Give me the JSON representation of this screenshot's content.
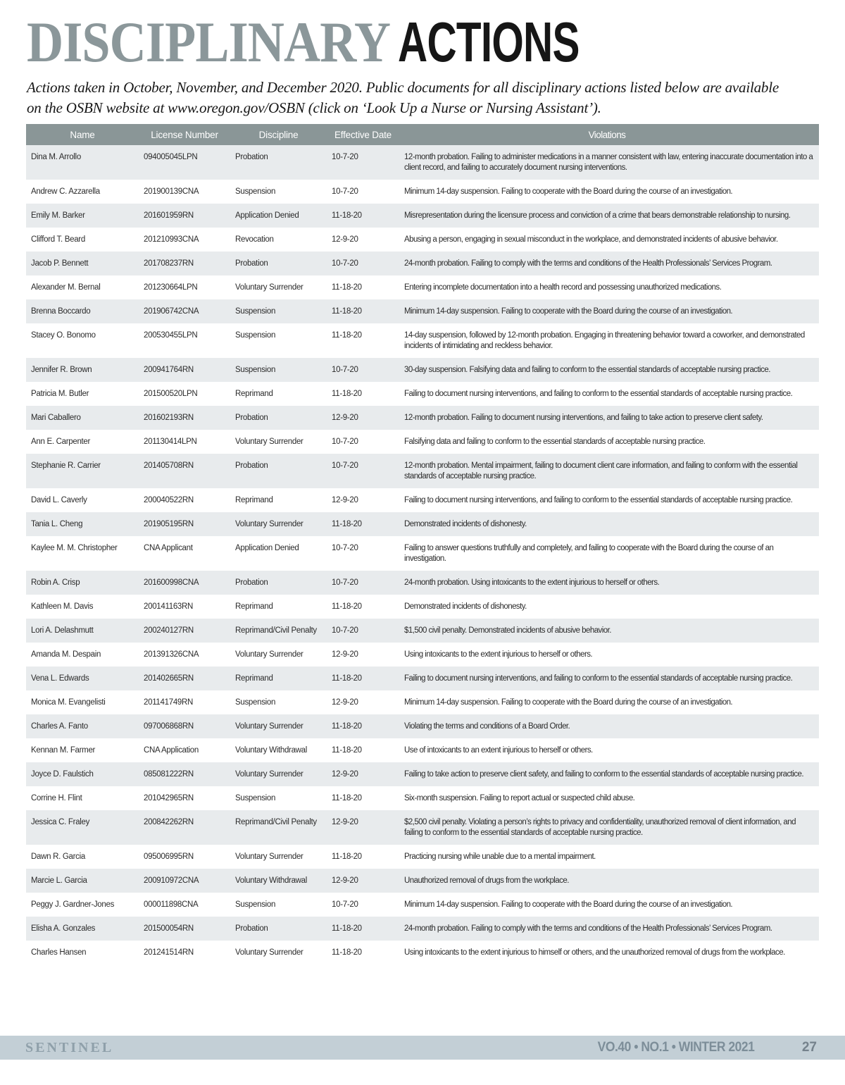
{
  "page": {
    "title_word1": "DISCIPLINARY",
    "title_word2": "ACTIONS",
    "intro_line1": "Actions taken in October, November, and December 2020.  Public documents for all disciplinary actions listed below are available",
    "intro_line2": "on the OSBN website at www.oregon.gov/OSBN (click on ‘Look Up a Nurse or Nursing Assistant’)."
  },
  "table": {
    "headers": [
      "Name",
      "License Number",
      "Discipline",
      "Effective Date",
      "Violations"
    ],
    "rows": [
      {
        "name": "Dina M. Arrollo",
        "license": "094005045LPN",
        "discipline": "Probation",
        "date": "10-7-20",
        "violations": "12-month probation.  Failing to administer medications in a manner consistent with law, entering inaccurate documentation into a client record, and failing to accurately document nursing interventions."
      },
      {
        "name": "Andrew C. Azzarella",
        "license": "201900139CNA",
        "discipline": "Suspension",
        "date": "10-7-20",
        "violations": "Minimum 14-day suspension.  Failing to cooperate with the Board during the course of an investigation."
      },
      {
        "name": "Emily M. Barker",
        "license": "201601959RN",
        "discipline": "Application Denied",
        "date": "11-18-20",
        "violations": "Misrepresentation during the licensure process and conviction of a crime that bears demonstrable relationship to nursing."
      },
      {
        "name": "Clifford T. Beard",
        "license": "201210993CNA",
        "discipline": "Revocation",
        "date": "12-9-20",
        "violations": "Abusing a person, engaging in sexual misconduct in the workplace, and demonstrated incidents of abusive behavior."
      },
      {
        "name": "Jacob P. Bennett",
        "license": "201708237RN",
        "discipline": "Probation",
        "date": "10-7-20",
        "violations": "24-month probation.  Failing to comply with the terms and conditions of the Health Professionals’ Services Program."
      },
      {
        "name": "Alexander M. Bernal",
        "license": "201230664LPN",
        "discipline": "Voluntary Surrender",
        "date": "11-18-20",
        "violations": "Entering incomplete documentation into a health record and possessing unauthorized medications."
      },
      {
        "name": "Brenna Boccardo",
        "license": "201906742CNA",
        "discipline": "Suspension",
        "date": "11-18-20",
        "violations": "Minimum 14-day suspension.  Failing to cooperate with the Board during the course of an investigation."
      },
      {
        "name": "Stacey O. Bonomo",
        "license": "200530455LPN",
        "discipline": "Suspension",
        "date": "11-18-20",
        "violations": "14-day suspension, followed by 12-month probation.  Engaging in threatening behavior toward a coworker, and demonstrated incidents of intimidating and reckless behavior."
      },
      {
        "name": "Jennifer R. Brown",
        "license": "200941764RN",
        "discipline": "Suspension",
        "date": "10-7-20",
        "violations": "30-day suspension.  Falsifying data and failing to conform to the essential standards of acceptable nursing practice."
      },
      {
        "name": "Patricia M. Butler",
        "license": "201500520LPN",
        "discipline": "Reprimand",
        "date": "11-18-20",
        "violations": "Failing to document nursing interventions, and failing to conform to the essential standards of acceptable nursing practice."
      },
      {
        "name": "Mari Caballero",
        "license": "201602193RN",
        "discipline": "Probation",
        "date": "12-9-20",
        "violations": "12-month probation.  Failing to document nursing interventions, and failing to take action to preserve client safety."
      },
      {
        "name": "Ann E. Carpenter",
        "license": "201130414LPN",
        "discipline": "Voluntary Surrender",
        "date": "10-7-20",
        "violations": "Falsifying data and failing to conform to the essential standards of acceptable nursing practice."
      },
      {
        "name": "Stephanie R. Carrier",
        "license": "201405708RN",
        "discipline": "Probation",
        "date": "10-7-20",
        "violations": "12-month probation.  Mental impairment, failing to document client care information, and failing to conform with the essential standards of acceptable nursing practice."
      },
      {
        "name": "David L. Caverly",
        "license": "200040522RN",
        "discipline": "Reprimand",
        "date": "12-9-20",
        "violations": "Failing to document nursing interventions, and failing to conform to the essential standards of acceptable nursing practice."
      },
      {
        "name": "Tania L. Cheng",
        "license": "201905195RN",
        "discipline": "Voluntary Surrender",
        "date": "11-18-20",
        "violations": "Demonstrated incidents of dishonesty."
      },
      {
        "name": "Kaylee M. M. Christopher",
        "license": "CNA Applicant",
        "discipline": "Application Denied",
        "date": "10-7-20",
        "violations": "Failing to answer questions truthfully and completely, and failing to cooperate with the Board during the course of an investigation."
      },
      {
        "name": "Robin A. Crisp",
        "license": "201600998CNA",
        "discipline": "Probation",
        "date": "10-7-20",
        "violations": "24-month probation.  Using intoxicants to the extent injurious to herself or others."
      },
      {
        "name": "Kathleen M. Davis",
        "license": "200141163RN",
        "discipline": "Reprimand",
        "date": "11-18-20",
        "violations": "Demonstrated incidents of dishonesty."
      },
      {
        "name": "Lori A. Delashmutt",
        "license": "200240127RN",
        "discipline": "Reprimand/Civil Penalty",
        "date": "10-7-20",
        "violations": "$1,500 civil penalty.  Demonstrated incidents of abusive behavior."
      },
      {
        "name": "Amanda M. Despain",
        "license": "201391326CNA",
        "discipline": "Voluntary Surrender",
        "date": "12-9-20",
        "violations": "Using intoxicants to the extent injurious to herself or others."
      },
      {
        "name": "Vena L. Edwards",
        "license": "201402665RN",
        "discipline": "Reprimand",
        "date": "11-18-20",
        "violations": "Failing to document nursing interventions, and failing to conform to the essential standards of acceptable nursing practice."
      },
      {
        "name": "Monica M. Evangelisti",
        "license": "201141749RN",
        "discipline": "Suspension",
        "date": "12-9-20",
        "violations": "Minimum 14-day suspension.  Failing to cooperate with the Board during the course of an investigation."
      },
      {
        "name": "Charles A. Fanto",
        "license": "097006868RN",
        "discipline": "Voluntary Surrender",
        "date": "11-18-20",
        "violations": "Violating the terms and conditions of a Board Order."
      },
      {
        "name": "Kennan M. Farmer",
        "license": "CNA Application",
        "discipline": "Voluntary Withdrawal",
        "date": "11-18-20",
        "violations": "Use of intoxicants to an extent injurious to herself or others."
      },
      {
        "name": "Joyce D. Faulstich",
        "license": "085081222RN",
        "discipline": "Voluntary Surrender",
        "date": "12-9-20",
        "violations": "Failing to take action to preserve client safety, and failing to conform to the essential standards of acceptable nursing practice."
      },
      {
        "name": "Corrine H. Flint",
        "license": "201042965RN",
        "discipline": "Suspension",
        "date": "11-18-20",
        "violations": "Six-month suspension.  Failing to report actual or suspected child abuse."
      },
      {
        "name": "Jessica C. Fraley",
        "license": "200842262RN",
        "discipline": "Reprimand/Civil Penalty",
        "date": "12-9-20",
        "violations": "$2,500 civil penalty.  Violating a person’s rights to privacy and confidentiality, unauthorized removal of client information, and failing to conform to the essential standards of acceptable nursing practice."
      },
      {
        "name": "Dawn R. Garcia",
        "license": "095006995RN",
        "discipline": "Voluntary Surrender",
        "date": "11-18-20",
        "violations": "Practicing nursing while unable due to a mental impairment."
      },
      {
        "name": "Marcie L. Garcia",
        "license": "200910972CNA",
        "discipline": "Voluntary Withdrawal",
        "date": "12-9-20",
        "violations": "Unauthorized removal of drugs from the workplace."
      },
      {
        "name": "Peggy J. Gardner-Jones",
        "license": "000011898CNA",
        "discipline": "Suspension",
        "date": "10-7-20",
        "violations": "Minimum 14-day suspension.  Failing to cooperate with the Board during the course of an investigation."
      },
      {
        "name": "Elisha A. Gonzales",
        "license": "201500054RN",
        "discipline": "Probation",
        "date": "11-18-20",
        "violations": "24-month probation.  Failing to comply with the terms and conditions of the Health Professionals’ Services Program."
      },
      {
        "name": "Charles Hansen",
        "license": "201241514RN",
        "discipline": "Voluntary Surrender",
        "date": "11-18-20",
        "violations": "Using intoxicants to the extent injurious to himself or others, and the unauthorized removal of drugs from the workplace."
      }
    ]
  },
  "footer": {
    "magazine": "SENTINEL",
    "issue": "VO.40 • NO.1 • WINTER 2021",
    "page_number": "27"
  },
  "colors": {
    "title_gray": "#8b979a",
    "title_black": "#161616",
    "table_header_bar": "#8a9697",
    "row_alt": "#e8ebed",
    "footer_bar": "#c3cfd6",
    "footer_text": "#7d8e99"
  }
}
